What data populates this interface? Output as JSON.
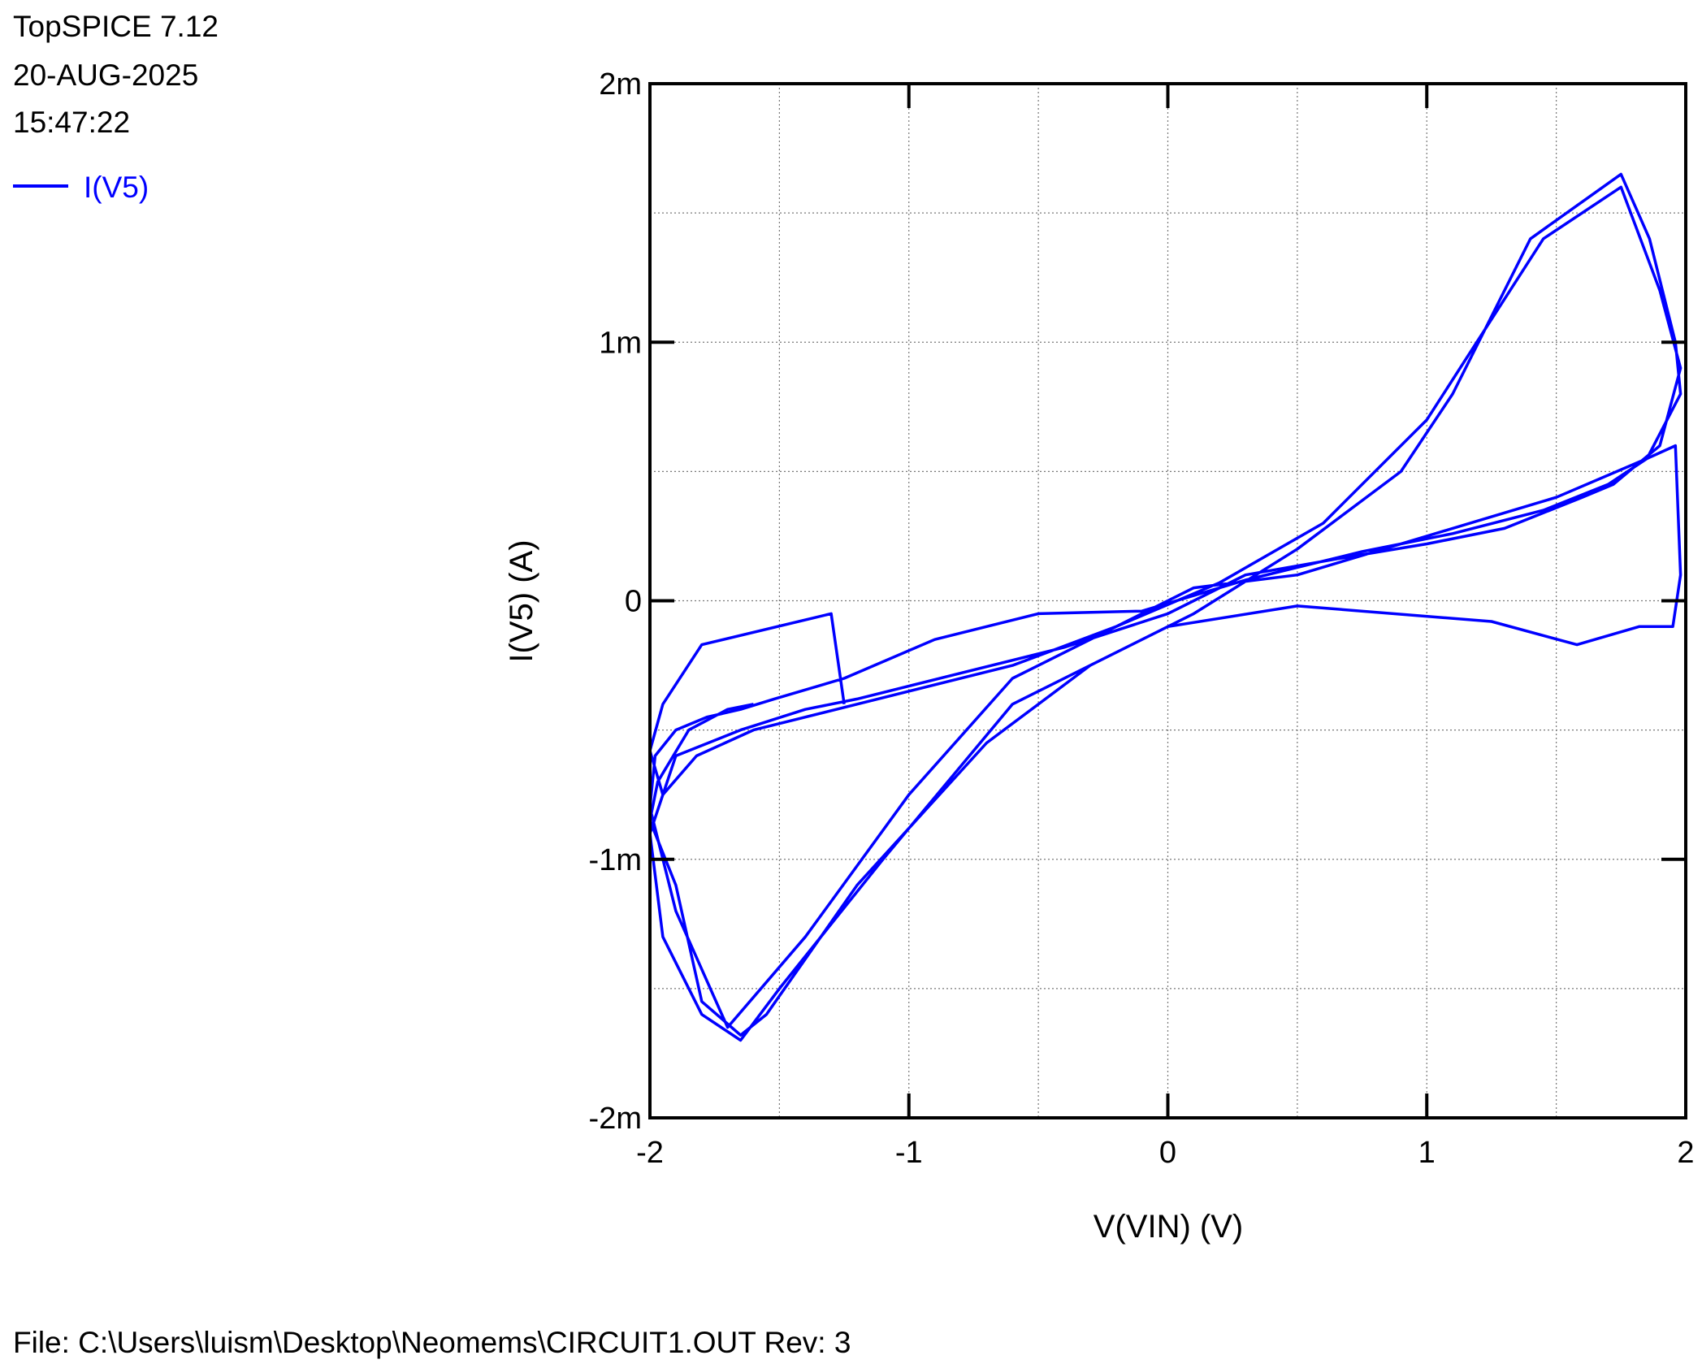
{
  "header": {
    "app": "TopSPICE 7.12",
    "date": "20-AUG-2025",
    "time": "15:47:22"
  },
  "legend": {
    "label": "I(V5)",
    "color": "#0000ff"
  },
  "footer": {
    "file_info": "File: C:\\Users\\luism\\Desktop\\Neomems\\CIRCUIT1.OUT   Rev: 3"
  },
  "chart_data": {
    "type": "line",
    "title": "",
    "xlabel": "V(VIN)  (V)",
    "ylabel": "I(V5)  (A)",
    "xlim": [
      -2,
      2
    ],
    "ylim": [
      -0.002,
      0.002
    ],
    "x_ticks": [
      -2,
      -1,
      0,
      1,
      2
    ],
    "x_tick_labels": [
      "-2",
      "-1",
      "0",
      "1",
      "2"
    ],
    "y_ticks": [
      -0.002,
      -0.001,
      0,
      0.001,
      0.002
    ],
    "y_tick_labels": [
      "-2m",
      "-1m",
      "0",
      "1m",
      "2m"
    ],
    "grid": true,
    "legend_position": "top-left",
    "series": [
      {
        "name": "I(V5)",
        "color": "#0000ff",
        "x": [
          -1.25,
          -1.3,
          -1.8,
          -1.95,
          -2.0,
          -1.95,
          -1.82,
          -1.6,
          -1.2,
          -0.6,
          -0.2,
          0.1,
          0.5,
          1.0,
          1.5,
          1.85,
          1.96,
          1.98,
          1.95,
          1.82,
          1.58,
          1.25,
          0.5,
          0.0,
          -0.6,
          -1.1,
          -1.5,
          -1.65,
          -1.8,
          -1.95,
          -2.0,
          -1.9,
          -1.65,
          -1.4,
          -1.2,
          -0.8,
          -0.4,
          0.0,
          0.3,
          0.7,
          1.0,
          1.3,
          1.6,
          1.72,
          1.9,
          1.98,
          1.9,
          1.75,
          1.45,
          1.0,
          0.6,
          0.2,
          -0.2,
          -0.6,
          -1.0,
          -1.4,
          -1.7,
          -1.9,
          -2.0,
          -1.98,
          -1.9,
          -1.78,
          -1.65,
          -1.52,
          -1.25,
          -0.9,
          -0.5,
          -0.1,
          0.3,
          0.75,
          1.1,
          1.45,
          1.7,
          1.85,
          1.98,
          1.96,
          1.86,
          1.75,
          1.4,
          1.1,
          0.9,
          0.5,
          0.1,
          -0.3,
          -0.7,
          -1.2,
          -1.55,
          -1.65,
          -1.8,
          -1.9,
          -2.0,
          -1.97,
          -1.85,
          -1.7,
          -1.6
        ],
        "y": [
          -0.0004,
          -5e-05,
          -0.00017,
          -0.0004,
          -0.00058,
          -0.00075,
          -0.0006,
          -0.0005,
          -0.0004,
          -0.00025,
          -0.0001,
          5e-05,
          0.0001,
          0.00025,
          0.0004,
          0.00055,
          0.0006,
          0.0001,
          -0.0001,
          -0.0001,
          -0.00017,
          -8e-05,
          -2e-05,
          -0.0001,
          -0.0004,
          -0.001,
          -0.0015,
          -0.0017,
          -0.0016,
          -0.0013,
          -0.0009,
          -0.0006,
          -0.0005,
          -0.00042,
          -0.00038,
          -0.00028,
          -0.00018,
          -5e-05,
          0.0001,
          0.00017,
          0.00022,
          0.00028,
          0.0004,
          0.00045,
          0.0006,
          0.0009,
          0.0012,
          0.0016,
          0.0014,
          0.0007,
          0.0003,
          7e-05,
          -0.0001,
          -0.0003,
          -0.00075,
          -0.0013,
          -0.00165,
          -0.0012,
          -0.0008,
          -0.0006,
          -0.0005,
          -0.00045,
          -0.00042,
          -0.00038,
          -0.0003,
          -0.00015,
          -5e-05,
          -4e-05,
          8e-05,
          0.00019,
          0.00026,
          0.00035,
          0.00045,
          0.00055,
          0.0008,
          0.001,
          0.0014,
          0.00165,
          0.0014,
          0.0008,
          0.0005,
          0.0002,
          -5e-05,
          -0.00025,
          -0.00055,
          -0.0011,
          -0.0016,
          -0.00168,
          -0.00155,
          -0.0011,
          -0.00085,
          -0.0007,
          -0.0005,
          -0.00042,
          -0.0004
        ]
      }
    ]
  }
}
